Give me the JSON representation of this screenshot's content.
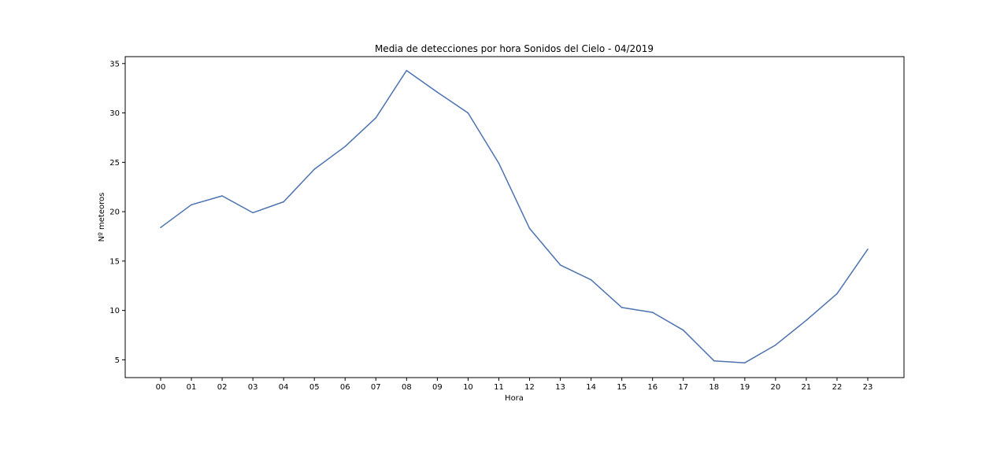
{
  "chart_data": {
    "type": "line",
    "title": "Media de detecciones por hora Sonidos del Cielo - 04/2019",
    "xlabel": "Hora",
    "ylabel": "Nº meteoros",
    "categories": [
      "00",
      "01",
      "02",
      "03",
      "04",
      "05",
      "06",
      "07",
      "08",
      "09",
      "10",
      "11",
      "12",
      "13",
      "14",
      "15",
      "16",
      "17",
      "18",
      "19",
      "20",
      "21",
      "22",
      "23"
    ],
    "series": [
      {
        "values": [
          18.4,
          20.7,
          21.6,
          19.9,
          21.0,
          24.3,
          26.6,
          29.5,
          34.3,
          32.1,
          30.0,
          24.9,
          18.3,
          14.6,
          13.1,
          10.3,
          9.8,
          8.0,
          4.9,
          4.7,
          6.5,
          9.0,
          11.7,
          16.2
        ],
        "color": "#4c72b0"
      }
    ],
    "yticks": [
      5,
      10,
      15,
      20,
      25,
      30,
      35
    ],
    "ylim": [
      3.2,
      35.7
    ],
    "grid": false,
    "legend": "none"
  }
}
